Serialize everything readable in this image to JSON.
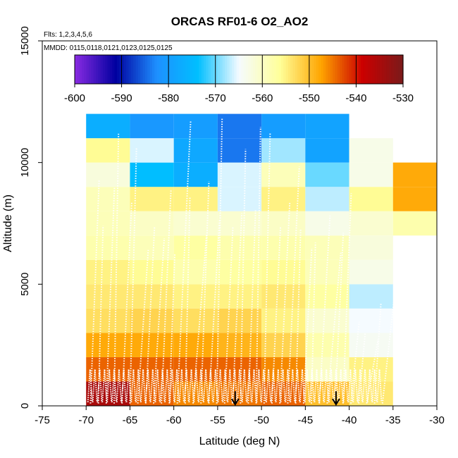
{
  "chart_data": {
    "type": "heatmap",
    "title": "ORCAS RF01-6 O2_AO2",
    "subtitle_flights": "Flts: 1,2,3,4,5,6",
    "subtitle_dates": "MMDD: 0115,0118,0121,0123,0125,0125",
    "xlabel": "Latitude (deg N)",
    "ylabel": "Altitude (m)",
    "xlim": [
      -75,
      -30
    ],
    "ylim": [
      0,
      15000
    ],
    "x_ticks": [
      "-75",
      "-70",
      "-65",
      "-60",
      "-55",
      "-50",
      "-45",
      "-40",
      "-35",
      "-30"
    ],
    "y_ticks": [
      "0",
      "5000",
      "10000",
      "15000"
    ],
    "colorbar": {
      "range": [
        -600,
        -530
      ],
      "tick_labels": [
        "-600",
        "-590",
        "-580",
        "-570",
        "-560",
        "-550",
        "-540",
        "-530"
      ],
      "stops": [
        "#8a2be2",
        "#0000a0",
        "#1e90ff",
        "#00bfff",
        "#f5fbff",
        "#ffff99",
        "#ffa500",
        "#cc0000",
        "#7a1a1a"
      ]
    },
    "lat_bins": [
      -70,
      -65,
      -60,
      -55,
      -50,
      -45,
      -40,
      -35,
      -30
    ],
    "alt_bins": [
      0,
      1000,
      2000,
      3000,
      4000,
      5000,
      6000,
      7000,
      8000,
      9000,
      10000,
      11000,
      12000
    ],
    "cells": [
      [
        -535,
        -544,
        -546,
        -545,
        -544,
        -550,
        -554,
        null
      ],
      [
        -544,
        -544,
        -544,
        -544,
        -546,
        -560,
        -555,
        null
      ],
      [
        -548,
        -548,
        -548,
        -549,
        -552,
        -558,
        -564,
        null
      ],
      [
        -553,
        -552,
        -553,
        -552,
        -555,
        -561,
        -565,
        null
      ],
      [
        -554,
        -554,
        -555,
        -555,
        -554,
        -557,
        -567,
        null
      ],
      [
        -555,
        -556,
        -558,
        -557,
        -556,
        -559,
        -563,
        null
      ],
      [
        -558,
        -559,
        -557,
        -558,
        -558,
        -559,
        -562,
        null
      ],
      [
        -559,
        -560,
        -561,
        -561,
        -560,
        -563,
        -561,
        -558
      ],
      [
        -559,
        -555,
        -555,
        -566,
        -555,
        -567,
        -556,
        -548
      ],
      [
        -562,
        -574,
        -577,
        -566,
        -559,
        -570,
        -563,
        -548
      ],
      [
        -556,
        -566,
        -578,
        -584,
        -568,
        -579,
        -563,
        null
      ],
      [
        -577,
        -581,
        -580,
        -584,
        -580,
        -579,
        null,
        null
      ]
    ],
    "markers": [
      {
        "label": "arrow",
        "lat": -53,
        "alt": 600
      },
      {
        "label": "arrow",
        "lat": -41.5,
        "alt": 600
      }
    ]
  }
}
